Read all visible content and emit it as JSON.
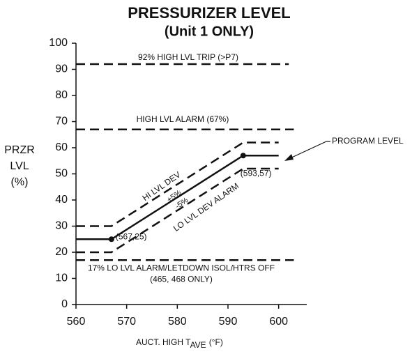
{
  "chart_data": {
    "type": "line",
    "title": "PRESSURIZER LEVEL",
    "subtitle": "(Unit 1 ONLY)",
    "y_label": [
      "PRZR",
      "LVL",
      "(%)"
    ],
    "x_label": {
      "text": "AUCT. HIGH T",
      "sub": "AVE",
      "unit": "(°F)"
    },
    "xlim": [
      560,
      605
    ],
    "ylim": [
      0,
      100
    ],
    "xticks": [
      560,
      570,
      580,
      590,
      600
    ],
    "yticks": [
      0,
      10,
      20,
      30,
      40,
      50,
      60,
      70,
      80,
      90,
      100
    ],
    "grid": false,
    "series": [
      {
        "name": "PROGRAM LEVEL",
        "color": "#111111",
        "dashed": false,
        "x": [
          560,
          567,
          593,
          600
        ],
        "values": [
          25,
          25,
          57,
          57
        ],
        "value_labels": [
          null,
          "(567,25)",
          "(593,57)",
          null
        ],
        "note": "+5%"
      },
      {
        "name": "HI LVL DEV",
        "color": "#111111",
        "dashed": true,
        "x": [
          560,
          567,
          593,
          600
        ],
        "values": [
          30,
          30,
          62,
          62
        ]
      },
      {
        "name": "LO LVL DEV ALARM",
        "color": "#111111",
        "dashed": true,
        "x": [
          560,
          567,
          593,
          600
        ],
        "values": [
          20,
          20,
          52,
          52
        ],
        "note": "-5%"
      }
    ],
    "hlines": [
      {
        "value": 92,
        "x": [
          560,
          602
        ],
        "label": "92%   HIGH LVL TRIP (>P7)"
      },
      {
        "value": 67,
        "x": [
          560,
          603
        ],
        "label": "HIGH LVL ALARM (67%)"
      },
      {
        "value": 17,
        "x": [
          560,
          603
        ],
        "label": "17% LO LVL ALARM/LETDOWN ISOL/HTRS OFF",
        "sublabel": "(465, 468 ONLY)"
      }
    ]
  }
}
